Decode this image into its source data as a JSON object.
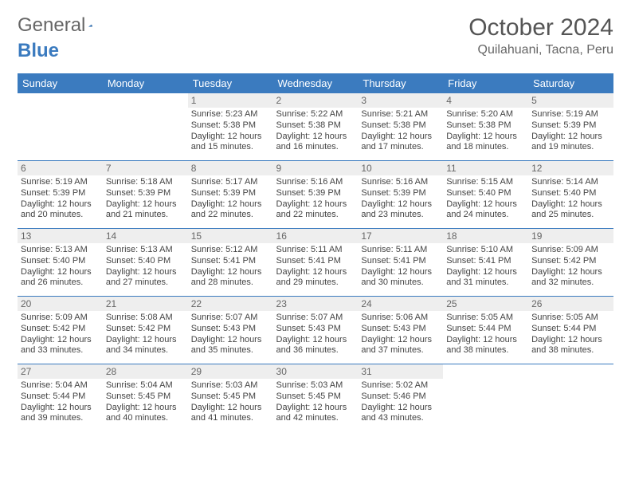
{
  "logo": {
    "text_gray": "General",
    "text_blue": "Blue"
  },
  "title": "October 2024",
  "location": "Quilahuani, Tacna, Peru",
  "colors": {
    "header_bg": "#3b7bbf",
    "header_text": "#ffffff",
    "daynum_bg": "#eeeeee",
    "daynum_text": "#666666",
    "row_border": "#3b7bbf",
    "body_text": "#444444",
    "page_bg": "#ffffff"
  },
  "typography": {
    "title_fontsize": 30,
    "location_fontsize": 16,
    "dayheader_fontsize": 13,
    "cell_fontsize": 11,
    "daynum_fontsize": 12
  },
  "day_headers": [
    "Sunday",
    "Monday",
    "Tuesday",
    "Wednesday",
    "Thursday",
    "Friday",
    "Saturday"
  ],
  "weeks": [
    [
      null,
      null,
      {
        "n": "1",
        "sr": "Sunrise: 5:23 AM",
        "ss": "Sunset: 5:38 PM",
        "d1": "Daylight: 12 hours",
        "d2": "and 15 minutes."
      },
      {
        "n": "2",
        "sr": "Sunrise: 5:22 AM",
        "ss": "Sunset: 5:38 PM",
        "d1": "Daylight: 12 hours",
        "d2": "and 16 minutes."
      },
      {
        "n": "3",
        "sr": "Sunrise: 5:21 AM",
        "ss": "Sunset: 5:38 PM",
        "d1": "Daylight: 12 hours",
        "d2": "and 17 minutes."
      },
      {
        "n": "4",
        "sr": "Sunrise: 5:20 AM",
        "ss": "Sunset: 5:38 PM",
        "d1": "Daylight: 12 hours",
        "d2": "and 18 minutes."
      },
      {
        "n": "5",
        "sr": "Sunrise: 5:19 AM",
        "ss": "Sunset: 5:39 PM",
        "d1": "Daylight: 12 hours",
        "d2": "and 19 minutes."
      }
    ],
    [
      {
        "n": "6",
        "sr": "Sunrise: 5:19 AM",
        "ss": "Sunset: 5:39 PM",
        "d1": "Daylight: 12 hours",
        "d2": "and 20 minutes."
      },
      {
        "n": "7",
        "sr": "Sunrise: 5:18 AM",
        "ss": "Sunset: 5:39 PM",
        "d1": "Daylight: 12 hours",
        "d2": "and 21 minutes."
      },
      {
        "n": "8",
        "sr": "Sunrise: 5:17 AM",
        "ss": "Sunset: 5:39 PM",
        "d1": "Daylight: 12 hours",
        "d2": "and 22 minutes."
      },
      {
        "n": "9",
        "sr": "Sunrise: 5:16 AM",
        "ss": "Sunset: 5:39 PM",
        "d1": "Daylight: 12 hours",
        "d2": "and 22 minutes."
      },
      {
        "n": "10",
        "sr": "Sunrise: 5:16 AM",
        "ss": "Sunset: 5:39 PM",
        "d1": "Daylight: 12 hours",
        "d2": "and 23 minutes."
      },
      {
        "n": "11",
        "sr": "Sunrise: 5:15 AM",
        "ss": "Sunset: 5:40 PM",
        "d1": "Daylight: 12 hours",
        "d2": "and 24 minutes."
      },
      {
        "n": "12",
        "sr": "Sunrise: 5:14 AM",
        "ss": "Sunset: 5:40 PM",
        "d1": "Daylight: 12 hours",
        "d2": "and 25 minutes."
      }
    ],
    [
      {
        "n": "13",
        "sr": "Sunrise: 5:13 AM",
        "ss": "Sunset: 5:40 PM",
        "d1": "Daylight: 12 hours",
        "d2": "and 26 minutes."
      },
      {
        "n": "14",
        "sr": "Sunrise: 5:13 AM",
        "ss": "Sunset: 5:40 PM",
        "d1": "Daylight: 12 hours",
        "d2": "and 27 minutes."
      },
      {
        "n": "15",
        "sr": "Sunrise: 5:12 AM",
        "ss": "Sunset: 5:41 PM",
        "d1": "Daylight: 12 hours",
        "d2": "and 28 minutes."
      },
      {
        "n": "16",
        "sr": "Sunrise: 5:11 AM",
        "ss": "Sunset: 5:41 PM",
        "d1": "Daylight: 12 hours",
        "d2": "and 29 minutes."
      },
      {
        "n": "17",
        "sr": "Sunrise: 5:11 AM",
        "ss": "Sunset: 5:41 PM",
        "d1": "Daylight: 12 hours",
        "d2": "and 30 minutes."
      },
      {
        "n": "18",
        "sr": "Sunrise: 5:10 AM",
        "ss": "Sunset: 5:41 PM",
        "d1": "Daylight: 12 hours",
        "d2": "and 31 minutes."
      },
      {
        "n": "19",
        "sr": "Sunrise: 5:09 AM",
        "ss": "Sunset: 5:42 PM",
        "d1": "Daylight: 12 hours",
        "d2": "and 32 minutes."
      }
    ],
    [
      {
        "n": "20",
        "sr": "Sunrise: 5:09 AM",
        "ss": "Sunset: 5:42 PM",
        "d1": "Daylight: 12 hours",
        "d2": "and 33 minutes."
      },
      {
        "n": "21",
        "sr": "Sunrise: 5:08 AM",
        "ss": "Sunset: 5:42 PM",
        "d1": "Daylight: 12 hours",
        "d2": "and 34 minutes."
      },
      {
        "n": "22",
        "sr": "Sunrise: 5:07 AM",
        "ss": "Sunset: 5:43 PM",
        "d1": "Daylight: 12 hours",
        "d2": "and 35 minutes."
      },
      {
        "n": "23",
        "sr": "Sunrise: 5:07 AM",
        "ss": "Sunset: 5:43 PM",
        "d1": "Daylight: 12 hours",
        "d2": "and 36 minutes."
      },
      {
        "n": "24",
        "sr": "Sunrise: 5:06 AM",
        "ss": "Sunset: 5:43 PM",
        "d1": "Daylight: 12 hours",
        "d2": "and 37 minutes."
      },
      {
        "n": "25",
        "sr": "Sunrise: 5:05 AM",
        "ss": "Sunset: 5:44 PM",
        "d1": "Daylight: 12 hours",
        "d2": "and 38 minutes."
      },
      {
        "n": "26",
        "sr": "Sunrise: 5:05 AM",
        "ss": "Sunset: 5:44 PM",
        "d1": "Daylight: 12 hours",
        "d2": "and 38 minutes."
      }
    ],
    [
      {
        "n": "27",
        "sr": "Sunrise: 5:04 AM",
        "ss": "Sunset: 5:44 PM",
        "d1": "Daylight: 12 hours",
        "d2": "and 39 minutes."
      },
      {
        "n": "28",
        "sr": "Sunrise: 5:04 AM",
        "ss": "Sunset: 5:45 PM",
        "d1": "Daylight: 12 hours",
        "d2": "and 40 minutes."
      },
      {
        "n": "29",
        "sr": "Sunrise: 5:03 AM",
        "ss": "Sunset: 5:45 PM",
        "d1": "Daylight: 12 hours",
        "d2": "and 41 minutes."
      },
      {
        "n": "30",
        "sr": "Sunrise: 5:03 AM",
        "ss": "Sunset: 5:45 PM",
        "d1": "Daylight: 12 hours",
        "d2": "and 42 minutes."
      },
      {
        "n": "31",
        "sr": "Sunrise: 5:02 AM",
        "ss": "Sunset: 5:46 PM",
        "d1": "Daylight: 12 hours",
        "d2": "and 43 minutes."
      },
      null,
      null
    ]
  ]
}
